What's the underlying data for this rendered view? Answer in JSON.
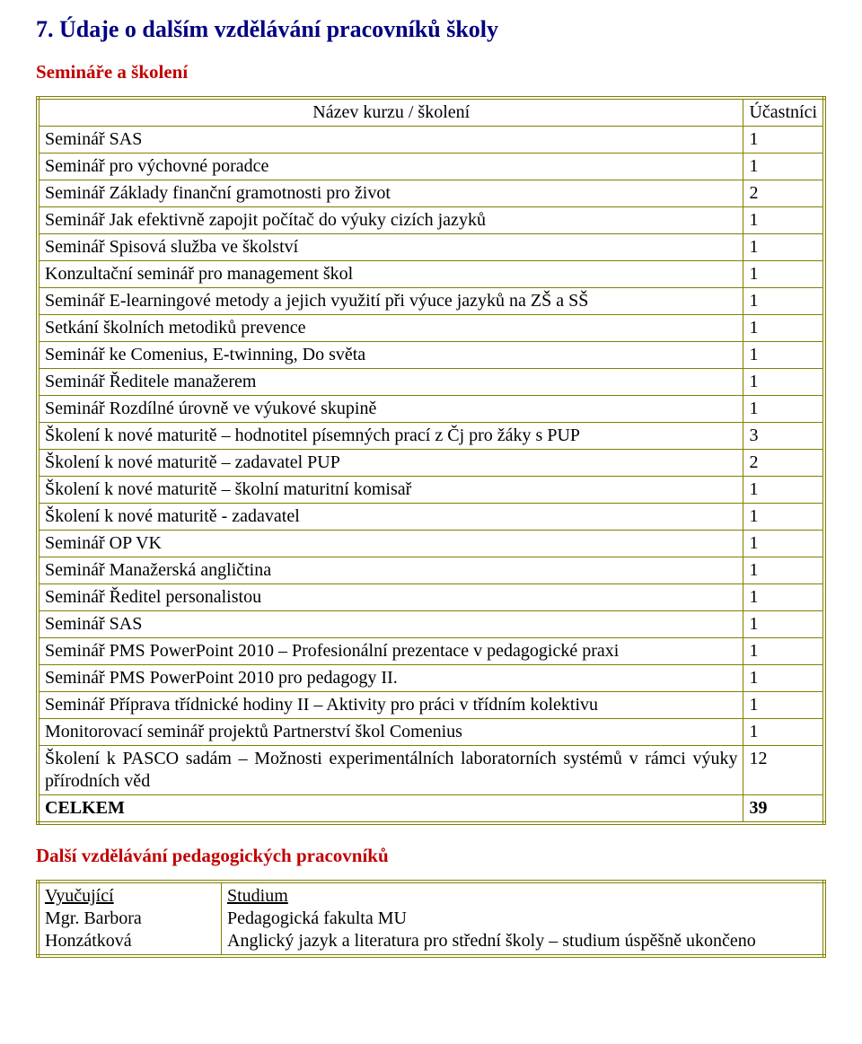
{
  "colors": {
    "title": "#000080",
    "subhead": "#c00000",
    "border": "#808000",
    "text": "#000000",
    "background": "#ffffff"
  },
  "title": "7. Údaje o dalším vzdělávání pracovníků školy",
  "section1_title": "Semináře a školení",
  "table1": {
    "header": {
      "name": "Název kurzu / školení",
      "count": "Účastníci"
    },
    "rows": [
      {
        "name": "Seminář SAS",
        "count": "1"
      },
      {
        "name": "Seminář pro výchovné poradce",
        "count": "1"
      },
      {
        "name": "Seminář Základy finanční gramotnosti pro život",
        "count": "2"
      },
      {
        "name": "Seminář Jak efektivně zapojit počítač do výuky cizích jazyků",
        "count": "1"
      },
      {
        "name": "Seminář Spisová služba ve školství",
        "count": "1"
      },
      {
        "name": "Konzultační seminář pro management škol",
        "count": "1"
      },
      {
        "name": "Seminář E-learningové metody a jejich využití při výuce jazyků na ZŠ a SŠ",
        "count": "1"
      },
      {
        "name": "Setkání školních metodiků prevence",
        "count": "1"
      },
      {
        "name": "Seminář ke Comenius, E-twinning, Do světa",
        "count": "1"
      },
      {
        "name": "Seminář Ředitele manažerem",
        "count": "1"
      },
      {
        "name": "Seminář Rozdílné úrovně ve výukové skupině",
        "count": "1"
      },
      {
        "name": "Školení k nové maturitě – hodnotitel písemných prací z Čj pro žáky s PUP",
        "count": "3"
      },
      {
        "name": "Školení k nové maturitě – zadavatel PUP",
        "count": "2"
      },
      {
        "name": "Školení k nové maturitě – školní maturitní komisař",
        "count": "1"
      },
      {
        "name": "Školení k nové maturitě - zadavatel",
        "count": "1"
      },
      {
        "name": "Seminář OP VK",
        "count": "1"
      },
      {
        "name": "Seminář Manažerská angličtina",
        "count": "1"
      },
      {
        "name": "Seminář Ředitel personalistou",
        "count": "1"
      },
      {
        "name": "Seminář SAS",
        "count": "1"
      },
      {
        "name": "Seminář PMS PowerPoint 2010 – Profesionální prezentace v pedagogické praxi",
        "count": "1"
      },
      {
        "name": "Seminář PMS PowerPoint 2010 pro pedagogy II.",
        "count": "1"
      },
      {
        "name": "Seminář Příprava třídnické hodiny II – Aktivity pro práci v třídním kolektivu",
        "count": "1"
      },
      {
        "name": "Monitorovací seminář projektů Partnerství škol Comenius",
        "count": "1"
      },
      {
        "name": "Školení k PASCO sadám – Možnosti experimentálních laboratorních systémů v rámci výuky přírodních věd",
        "count": "12",
        "justify": true
      },
      {
        "name": "CELKEM",
        "count": "39",
        "bold": true
      }
    ]
  },
  "section2_title": "Další vzdělávání pedagogických pracovníků",
  "table2": {
    "header": {
      "left": "Vyučující",
      "right": "Studium"
    },
    "rows": [
      {
        "left": "Mgr. Barbora Honzátková",
        "right": "Pedagogická fakulta MU\nAnglický jazyk a literatura pro střední školy – studium úspěšně ukončeno"
      }
    ]
  }
}
